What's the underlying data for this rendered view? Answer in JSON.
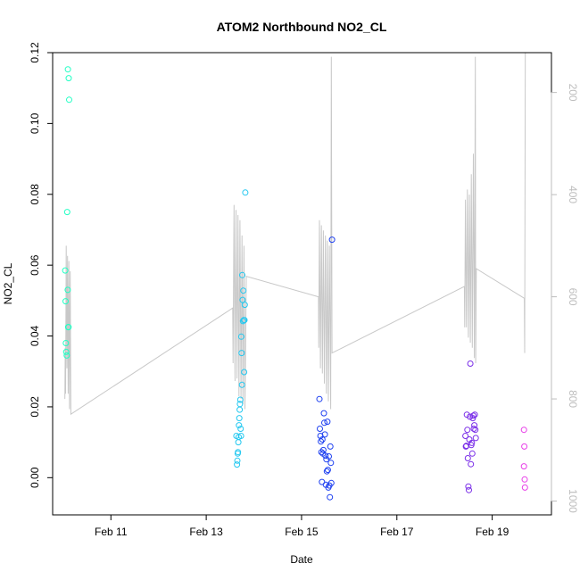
{
  "chart_data": {
    "type": "scatter",
    "title": "ATOM2 Northbound NO2_CL",
    "xlabel": "Date",
    "ylabel": "NO2_CL",
    "xlim": [
      "2010-02-09 18:40",
      "2010-02-20 05:50"
    ],
    "ylim": [
      -0.0105,
      0.12
    ],
    "x_ticks": [
      {
        "x": "2010-02-11",
        "label": "Feb 11"
      },
      {
        "x": "2010-02-13",
        "label": "Feb 13"
      },
      {
        "x": "2010-02-15",
        "label": "Feb 15"
      },
      {
        "x": "2010-02-17",
        "label": "Feb 17"
      },
      {
        "x": "2010-02-19",
        "label": "Feb 19"
      }
    ],
    "y_ticks": [
      {
        "y": 0.0,
        "label": "0.00"
      },
      {
        "y": 0.02,
        "label": "0.02"
      },
      {
        "y": 0.04,
        "label": "0.04"
      },
      {
        "y": 0.06,
        "label": "0.06"
      },
      {
        "y": 0.08,
        "label": "0.08"
      },
      {
        "y": 0.1,
        "label": "0.10"
      },
      {
        "y": 0.12,
        "label": "0.12"
      }
    ],
    "y2_ticks": [
      {
        "y": 200,
        "label": "200"
      },
      {
        "y": 400,
        "label": "400"
      },
      {
        "y": 600,
        "label": "600"
      },
      {
        "y": 800,
        "label": "800"
      },
      {
        "y": 1000,
        "label": "1000"
      }
    ],
    "y2lim": [
      1027,
      122
    ],
    "grid": false,
    "colors": {
      "secondary_line": "#c8c8c8",
      "point_colors": [
        "#22ffc4",
        "#24c8f0",
        "#1e40f0",
        "#7a2ee8",
        "#e83ee8"
      ]
    },
    "points": [
      {
        "x": "2010-02-10 01:00",
        "y": 0.0585,
        "c": 0
      },
      {
        "x": "2010-02-10 01:10",
        "y": 0.0498,
        "c": 0
      },
      {
        "x": "2010-02-10 01:20",
        "y": 0.038,
        "c": 0
      },
      {
        "x": "2010-02-10 01:30",
        "y": 0.0355,
        "c": 0
      },
      {
        "x": "2010-02-10 01:45",
        "y": 0.0345,
        "c": 0
      },
      {
        "x": "2010-02-10 02:00",
        "y": 0.075,
        "c": 0
      },
      {
        "x": "2010-02-10 02:15",
        "y": 0.053,
        "c": 0
      },
      {
        "x": "2010-02-10 02:30",
        "y": 0.0425,
        "c": 0
      },
      {
        "x": "2010-02-10 02:40",
        "y": 0.0425,
        "c": 0
      },
      {
        "x": "2010-02-10 02:20",
        "y": 0.1153,
        "c": 0
      },
      {
        "x": "2010-02-10 02:45",
        "y": 0.1128,
        "c": 0
      },
      {
        "x": "2010-02-10 03:00",
        "y": 0.1067,
        "c": 0
      },
      {
        "x": "2010-02-13 15:10",
        "y": 0.0118,
        "c": 1
      },
      {
        "x": "2010-02-13 15:30",
        "y": 0.0037,
        "c": 1
      },
      {
        "x": "2010-02-13 15:40",
        "y": 0.0048,
        "c": 1
      },
      {
        "x": "2010-02-13 15:50",
        "y": 0.0068,
        "c": 1
      },
      {
        "x": "2010-02-13 16:00",
        "y": 0.0072,
        "c": 1
      },
      {
        "x": "2010-02-13 16:10",
        "y": 0.01,
        "c": 1
      },
      {
        "x": "2010-02-13 16:20",
        "y": 0.0115,
        "c": 1
      },
      {
        "x": "2010-02-13 16:30",
        "y": 0.0148,
        "c": 1
      },
      {
        "x": "2010-02-13 16:40",
        "y": 0.0168,
        "c": 1
      },
      {
        "x": "2010-02-13 16:50",
        "y": 0.0192,
        "c": 1
      },
      {
        "x": "2010-02-13 17:00",
        "y": 0.0208,
        "c": 1
      },
      {
        "x": "2010-02-13 17:10",
        "y": 0.022,
        "c": 1
      },
      {
        "x": "2010-02-13 17:20",
        "y": 0.0138,
        "c": 1
      },
      {
        "x": "2010-02-13 17:30",
        "y": 0.0118,
        "c": 1
      },
      {
        "x": "2010-02-13 17:40",
        "y": 0.0398,
        "c": 1
      },
      {
        "x": "2010-02-13 17:50",
        "y": 0.0352,
        "c": 1
      },
      {
        "x": "2010-02-13 18:00",
        "y": 0.0262,
        "c": 1
      },
      {
        "x": "2010-02-13 18:10",
        "y": 0.0572,
        "c": 1
      },
      {
        "x": "2010-02-13 18:20",
        "y": 0.0502,
        "c": 1
      },
      {
        "x": "2010-02-13 18:30",
        "y": 0.0442,
        "c": 1
      },
      {
        "x": "2010-02-13 18:40",
        "y": 0.0528,
        "c": 1
      },
      {
        "x": "2010-02-13 18:55",
        "y": 0.0445,
        "c": 1
      },
      {
        "x": "2010-02-13 19:05",
        "y": 0.0298,
        "c": 1
      },
      {
        "x": "2010-02-13 19:15",
        "y": 0.0445,
        "c": 1
      },
      {
        "x": "2010-02-13 19:25",
        "y": 0.0488,
        "c": 1
      },
      {
        "x": "2010-02-13 19:40",
        "y": 0.0805,
        "c": 1
      },
      {
        "x": "2010-02-15 09:00",
        "y": 0.0222,
        "c": 2
      },
      {
        "x": "2010-02-15 09:15",
        "y": 0.0138,
        "c": 2
      },
      {
        "x": "2010-02-15 09:30",
        "y": 0.0118,
        "c": 2
      },
      {
        "x": "2010-02-15 09:45",
        "y": 0.0102,
        "c": 2
      },
      {
        "x": "2010-02-15 10:00",
        "y": 0.0072,
        "c": 2
      },
      {
        "x": "2010-02-15 10:15",
        "y": -0.0012,
        "c": 2
      },
      {
        "x": "2010-02-15 10:30",
        "y": 0.0108,
        "c": 2
      },
      {
        "x": "2010-02-15 10:45",
        "y": 0.0068,
        "c": 2
      },
      {
        "x": "2010-02-15 11:00",
        "y": 0.0078,
        "c": 2
      },
      {
        "x": "2010-02-15 11:15",
        "y": 0.0182,
        "c": 2
      },
      {
        "x": "2010-02-15 11:30",
        "y": 0.0155,
        "c": 2
      },
      {
        "x": "2010-02-15 11:45",
        "y": 0.0122,
        "c": 2
      },
      {
        "x": "2010-02-15 12:00",
        "y": 0.0062,
        "c": 2
      },
      {
        "x": "2010-02-15 12:15",
        "y": -0.002,
        "c": 2
      },
      {
        "x": "2010-02-15 12:30",
        "y": 0.0052,
        "c": 2
      },
      {
        "x": "2010-02-15 12:45",
        "y": 0.0018,
        "c": 2
      },
      {
        "x": "2010-02-15 13:00",
        "y": 0.0158,
        "c": 2
      },
      {
        "x": "2010-02-15 13:15",
        "y": 0.0022,
        "c": 2
      },
      {
        "x": "2010-02-15 13:30",
        "y": -0.0028,
        "c": 2
      },
      {
        "x": "2010-02-15 13:45",
        "y": 0.006,
        "c": 2
      },
      {
        "x": "2010-02-15 14:00",
        "y": -0.0022,
        "c": 2
      },
      {
        "x": "2010-02-15 14:15",
        "y": -0.0055,
        "c": 2
      },
      {
        "x": "2010-02-15 14:30",
        "y": 0.0088,
        "c": 2
      },
      {
        "x": "2010-02-15 14:45",
        "y": 0.0042,
        "c": 2
      },
      {
        "x": "2010-02-15 15:00",
        "y": -0.0015,
        "c": 2
      },
      {
        "x": "2010-02-15 15:20",
        "y": 0.0672,
        "c": 2
      },
      {
        "x": "2010-02-18 10:30",
        "y": 0.0118,
        "c": 3
      },
      {
        "x": "2010-02-18 10:45",
        "y": 0.0088,
        "c": 3
      },
      {
        "x": "2010-02-18 11:00",
        "y": 0.009,
        "c": 3
      },
      {
        "x": "2010-02-18 11:15",
        "y": 0.0178,
        "c": 3
      },
      {
        "x": "2010-02-18 11:30",
        "y": 0.0135,
        "c": 3
      },
      {
        "x": "2010-02-18 11:45",
        "y": 0.0055,
        "c": 3
      },
      {
        "x": "2010-02-18 12:00",
        "y": -0.0025,
        "c": 3
      },
      {
        "x": "2010-02-18 12:15",
        "y": -0.0035,
        "c": 3
      },
      {
        "x": "2010-02-18 12:30",
        "y": 0.0108,
        "c": 3
      },
      {
        "x": "2010-02-18 12:45",
        "y": 0.0172,
        "c": 3
      },
      {
        "x": "2010-02-18 13:00",
        "y": 0.0322,
        "c": 3
      },
      {
        "x": "2010-02-18 13:15",
        "y": 0.0038,
        "c": 3
      },
      {
        "x": "2010-02-18 13:30",
        "y": 0.0092,
        "c": 3
      },
      {
        "x": "2010-02-18 13:45",
        "y": 0.0098,
        "c": 3
      },
      {
        "x": "2010-02-18 14:00",
        "y": 0.0068,
        "c": 3
      },
      {
        "x": "2010-02-18 14:15",
        "y": 0.0168,
        "c": 3
      },
      {
        "x": "2010-02-18 14:30",
        "y": 0.0175,
        "c": 3
      },
      {
        "x": "2010-02-18 14:45",
        "y": 0.0138,
        "c": 3
      },
      {
        "x": "2010-02-18 15:00",
        "y": 0.0148,
        "c": 3
      },
      {
        "x": "2010-02-18 15:15",
        "y": 0.0178,
        "c": 3
      },
      {
        "x": "2010-02-18 15:30",
        "y": 0.0135,
        "c": 3
      },
      {
        "x": "2010-02-18 15:45",
        "y": 0.0112,
        "c": 3
      },
      {
        "x": "2010-02-19 16:00",
        "y": 0.0135,
        "c": 4
      },
      {
        "x": "2010-02-19 16:10",
        "y": 0.0088,
        "c": 4
      },
      {
        "x": "2010-02-19 16:00",
        "y": 0.0032,
        "c": 4
      },
      {
        "x": "2010-02-19 16:20",
        "y": -0.0005,
        "c": 4
      },
      {
        "x": "2010-02-19 16:30",
        "y": -0.0028,
        "c": 4
      }
    ],
    "secondary_series": [
      {
        "x": "2010-02-10 00:50",
        "y": 800
      },
      {
        "x": "2010-02-10 01:00",
        "y": 700
      },
      {
        "x": "2010-02-10 01:10",
        "y": 790
      },
      {
        "x": "2010-02-10 01:30",
        "y": 500
      },
      {
        "x": "2010-02-10 01:50",
        "y": 740
      },
      {
        "x": "2010-02-10 02:10",
        "y": 520
      },
      {
        "x": "2010-02-10 02:30",
        "y": 790
      },
      {
        "x": "2010-02-10 02:50",
        "y": 530
      },
      {
        "x": "2010-02-10 03:10",
        "y": 820
      },
      {
        "x": "2010-02-10 03:30",
        "y": 550
      },
      {
        "x": "2010-02-10 03:50",
        "y": 830
      },
      {
        "x": "2010-02-13 13:20",
        "y": 622
      },
      {
        "x": "2010-02-13 13:30",
        "y": 730
      },
      {
        "x": "2010-02-13 14:00",
        "y": 420
      },
      {
        "x": "2010-02-13 14:30",
        "y": 765
      },
      {
        "x": "2010-02-13 15:00",
        "y": 430
      },
      {
        "x": "2010-02-13 15:30",
        "y": 760
      },
      {
        "x": "2010-02-13 16:00",
        "y": 440
      },
      {
        "x": "2010-02-13 16:30",
        "y": 795
      },
      {
        "x": "2010-02-13 17:00",
        "y": 450
      },
      {
        "x": "2010-02-13 17:30",
        "y": 800
      },
      {
        "x": "2010-02-13 18:00",
        "y": 480
      },
      {
        "x": "2010-02-13 18:30",
        "y": 810
      },
      {
        "x": "2010-02-13 19:00",
        "y": 500
      },
      {
        "x": "2010-02-13 19:30",
        "y": 820
      },
      {
        "x": "2010-02-13 20:10",
        "y": 560
      },
      {
        "x": "2010-02-15 08:30",
        "y": 600
      },
      {
        "x": "2010-02-15 08:40",
        "y": 700
      },
      {
        "x": "2010-02-15 09:00",
        "y": 450
      },
      {
        "x": "2010-02-15 09:30",
        "y": 740
      },
      {
        "x": "2010-02-15 10:00",
        "y": 460
      },
      {
        "x": "2010-02-15 10:30",
        "y": 750
      },
      {
        "x": "2010-02-15 11:00",
        "y": 470
      },
      {
        "x": "2010-02-15 11:30",
        "y": 770
      },
      {
        "x": "2010-02-15 12:00",
        "y": 480
      },
      {
        "x": "2010-02-15 12:30",
        "y": 790
      },
      {
        "x": "2010-02-15 13:00",
        "y": 490
      },
      {
        "x": "2010-02-15 13:30",
        "y": 805
      },
      {
        "x": "2010-02-15 14:00",
        "y": 500
      },
      {
        "x": "2010-02-15 14:40",
        "y": 820
      },
      {
        "x": "2010-02-15 15:00",
        "y": 130
      },
      {
        "x": "2010-02-15 15:20",
        "y": 710
      },
      {
        "x": "2010-02-18 10:00",
        "y": 580
      },
      {
        "x": "2010-02-18 10:10",
        "y": 660
      },
      {
        "x": "2010-02-18 10:30",
        "y": 410
      },
      {
        "x": "2010-02-18 11:00",
        "y": 660
      },
      {
        "x": "2010-02-18 11:30",
        "y": 390
      },
      {
        "x": "2010-02-18 12:00",
        "y": 680
      },
      {
        "x": "2010-02-18 12:30",
        "y": 400
      },
      {
        "x": "2010-02-18 13:00",
        "y": 690
      },
      {
        "x": "2010-02-18 13:30",
        "y": 360
      },
      {
        "x": "2010-02-18 14:00",
        "y": 700
      },
      {
        "x": "2010-02-18 14:30",
        "y": 320
      },
      {
        "x": "2010-02-18 15:00",
        "y": 720
      },
      {
        "x": "2010-02-18 15:30",
        "y": 130
      },
      {
        "x": "2010-02-18 15:40",
        "y": 730
      },
      {
        "x": "2010-02-18 16:00",
        "y": 545
      },
      {
        "x": "2010-02-19 16:10",
        "y": 603
      },
      {
        "x": "2010-02-19 16:20",
        "y": 710
      },
      {
        "x": "2010-02-19 16:40",
        "y": 122
      }
    ]
  }
}
